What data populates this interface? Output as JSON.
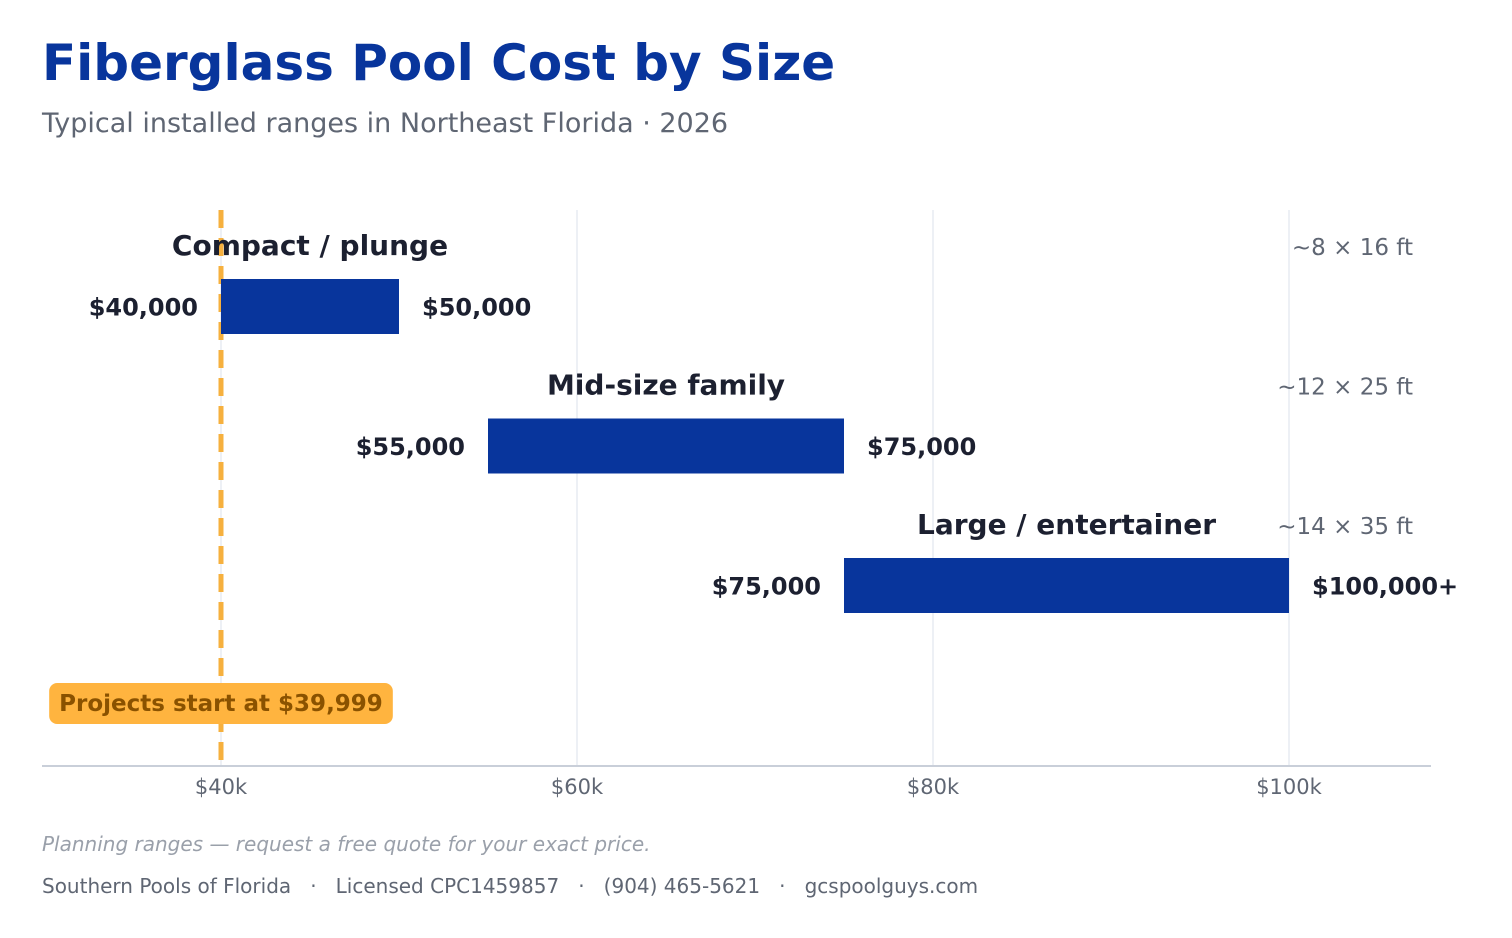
{
  "title": "Fiberglass Pool Cost by Size",
  "subtitle": "Typical installed ranges in Northeast Florida  ·  2026",
  "chart_data": {
    "type": "bar",
    "orientation": "horizontal-range",
    "xlim": [
      30000,
      108000
    ],
    "grid": true,
    "ticks": [
      {
        "value": 40000,
        "label": "$40k"
      },
      {
        "value": 60000,
        "label": "$60k"
      },
      {
        "value": 80000,
        "label": "$80k"
      },
      {
        "value": 100000,
        "label": "$100k"
      }
    ],
    "categories": [
      {
        "name": "Compact / plunge",
        "size": "~8 × 16 ft",
        "low": 40000,
        "high": 50000,
        "low_label": "$40,000",
        "high_label": "$50,000"
      },
      {
        "name": "Mid-size family",
        "size": "~12 × 25 ft",
        "low": 55000,
        "high": 75000,
        "low_label": "$55,000",
        "high_label": "$75,000"
      },
      {
        "name": "Large / entertainer",
        "size": "~14 × 35 ft",
        "low": 75000,
        "high": 100000,
        "low_label": "$75,000",
        "high_label": "$100,000+"
      }
    ],
    "reference_line": {
      "value": 40000,
      "label": "Projects start at $39,999"
    },
    "colors": {
      "bar": "#08359c",
      "reference": "#f6b03e",
      "reference_badge": "#ffb43f",
      "reference_text": "#8a5200",
      "grid": "#edf0f5",
      "axis": "#c9cfd9",
      "label": "#1c2030",
      "muted": "#5f6673"
    }
  },
  "note": "Planning ranges — request a free quote for your exact price.",
  "footer": "Southern Pools of Florida   ·   Licensed CPC1459857   ·   (904) 465-5621   ·   gcspoolguys.com"
}
